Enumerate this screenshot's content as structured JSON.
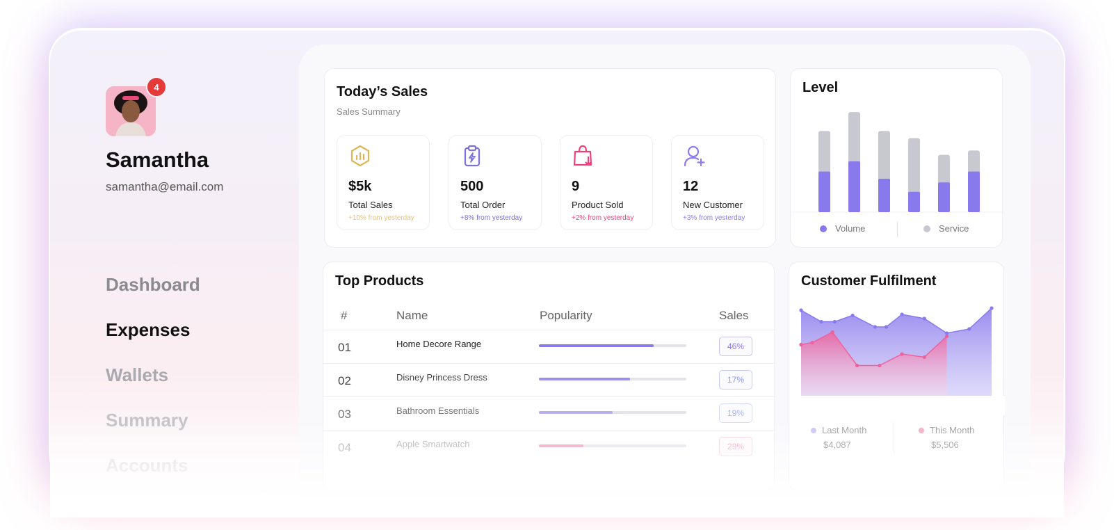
{
  "user": {
    "name": "Samantha",
    "email": "samantha@email.com",
    "notifications": "4"
  },
  "nav": [
    "Dashboard",
    "Expenses",
    "Wallets",
    "Summary",
    "Accounts"
  ],
  "sales": {
    "title": "Today’s Sales",
    "subtitle": "Sales Summary",
    "stats": [
      {
        "value": "$5k",
        "label": "Total Sales",
        "change": "+10% from yesterday",
        "icon": "chart-hexagon-icon",
        "color": "#e0b558"
      },
      {
        "value": "500",
        "label": "Total Order",
        "change": "+8% from yesterday",
        "icon": "clipboard-bolt-icon",
        "color": "#7b6fe0"
      },
      {
        "value": "9",
        "label": "Product Sold",
        "change": "+2% from yesterday",
        "icon": "shopping-bag-icon",
        "color": "#f0407a"
      },
      {
        "value": "12",
        "label": "New Customer",
        "change": "+3% from yesterday",
        "icon": "user-plus-icon",
        "color": "#8a7cf0"
      }
    ]
  },
  "level": {
    "title": "Level",
    "legend": [
      "Volume",
      "Service"
    ],
    "colors": {
      "volume": "#8879ec",
      "service": "#c8c8d0"
    }
  },
  "chart_data": [
    {
      "type": "bar",
      "title": "Level",
      "categories": [
        "",
        "",
        "",
        "",
        "",
        ""
      ],
      "series": [
        {
          "name": "Volume",
          "values": [
            56,
            70,
            46,
            28,
            41,
            56
          ]
        },
        {
          "name": "Service",
          "values": [
            56,
            68,
            66,
            74,
            38,
            29
          ]
        }
      ],
      "stacked": true,
      "ylim": [
        0,
        140
      ],
      "grid": false,
      "legend": "bottom"
    },
    {
      "type": "area",
      "title": "Customer Fulfilment",
      "x": [
        0,
        1,
        2,
        3,
        4,
        5,
        6,
        7,
        8,
        9,
        10,
        11,
        12
      ],
      "series": [
        {
          "name": "Last Month",
          "values": [
            82,
            71,
            71,
            77,
            66,
            66,
            78,
            74,
            60,
            64,
            84,
            null,
            null
          ]
        },
        {
          "name": "This Month",
          "values": [
            49,
            51,
            61,
            29,
            29,
            40,
            37,
            57,
            null,
            null,
            null,
            null,
            null
          ]
        }
      ],
      "ylim": [
        0,
        100
      ],
      "grid": false,
      "legend": "bottom"
    }
  ],
  "products": {
    "title": "Top Products",
    "headers": [
      "#",
      "Name",
      "Popularity",
      "Sales"
    ],
    "rows": [
      {
        "num": "01",
        "name": "Home Decore Range",
        "popularity": 0.78,
        "sales": "46%",
        "color": "#8879ec"
      },
      {
        "num": "02",
        "name": "Disney Princess Dress",
        "popularity": 0.62,
        "sales": "17%",
        "color": "#8879ec"
      },
      {
        "num": "03",
        "name": "Bathroom Essentials",
        "popularity": 0.5,
        "sales": "19%",
        "color": "#8879ec"
      },
      {
        "num": "04",
        "name": "Apple Smartwatch",
        "popularity": 0.3,
        "sales": "29%",
        "color": "#f07aa0"
      }
    ]
  },
  "fulfilment": {
    "title": "Customer Fulfilment",
    "last_label": "Last Month",
    "last_value": "$4,087",
    "this_label": "This Month",
    "this_value": "$5,506",
    "colors": {
      "last": "#8879ec",
      "this": "#f0609a"
    }
  }
}
